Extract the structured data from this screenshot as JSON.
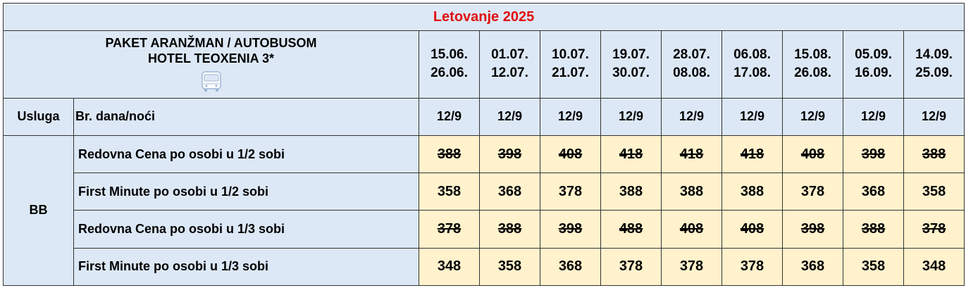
{
  "title": "Letovanje 2025",
  "header": {
    "line1": "PAKET ARANŽMAN / AUTOBUSOM",
    "line2": "HOTEL TEOXENIA 3*",
    "transport_icon": "bus-icon"
  },
  "periods": [
    {
      "start": "15.06.",
      "end": "26.06."
    },
    {
      "start": "01.07.",
      "end": "12.07."
    },
    {
      "start": "10.07.",
      "end": "21.07."
    },
    {
      "start": "19.07.",
      "end": "30.07."
    },
    {
      "start": "28.07.",
      "end": "08.08."
    },
    {
      "start": "06.08.",
      "end": "17.08."
    },
    {
      "start": "15.08.",
      "end": "26.08."
    },
    {
      "start": "05.09.",
      "end": "16.09."
    },
    {
      "start": "14.09.",
      "end": "25.09."
    }
  ],
  "service_label": "Usluga",
  "nights_label": "Br. dana/noći",
  "nights": [
    "12/9",
    "12/9",
    "12/9",
    "12/9",
    "12/9",
    "12/9",
    "12/9",
    "12/9",
    "12/9"
  ],
  "board": "BB",
  "rows": [
    {
      "label": "Redovna Cena po osobi u 1/2 sobi",
      "strikethrough": true,
      "prices": [
        "388",
        "398",
        "408",
        "418",
        "418",
        "418",
        "408",
        "398",
        "388"
      ]
    },
    {
      "label": "First Minute po osobi u 1/2 sobi",
      "strikethrough": false,
      "prices": [
        "358",
        "368",
        "378",
        "388",
        "388",
        "388",
        "378",
        "368",
        "358"
      ]
    },
    {
      "label": "Redovna Cena po osobi u 1/3 sobi",
      "strikethrough": true,
      "prices": [
        "378",
        "388",
        "398",
        "488",
        "408",
        "408",
        "398",
        "388",
        "378"
      ]
    },
    {
      "label": "First Minute po osobi u 1/3 sobi",
      "strikethrough": false,
      "prices": [
        "348",
        "358",
        "368",
        "378",
        "378",
        "378",
        "368",
        "358",
        "348"
      ]
    }
  ],
  "colors": {
    "title": "#e01010",
    "header_bg": "#dde8f6",
    "price_bg": "#fff2cc",
    "border": "#333333"
  }
}
